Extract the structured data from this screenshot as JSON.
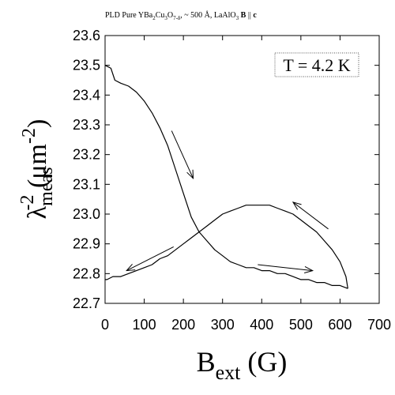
{
  "chart_data": {
    "type": "line",
    "title_parts": {
      "prefix": "PLD Pure YBa",
      "sub1": "2",
      "mid1": "Cu",
      "sub2": "3",
      "mid2": "O",
      "sub3": "7-δ",
      "mid3": ",  ~ 500 Å,  LaAlO",
      "sub4": "3",
      "mid4": "  ",
      "bold1": "B",
      "mid5": " || ",
      "bold2": "c"
    },
    "ylabel_parts": {
      "symbol": "λ",
      "sub": "meas",
      "sup": "-2",
      "unit_open": " (μm",
      "unit_sup": "-2",
      "unit_close": ")"
    },
    "xlabel_parts": {
      "main": "B",
      "sub": "ext",
      "unit": " (G)"
    },
    "annotation": "T = 4.2 K",
    "xlim": [
      0,
      700
    ],
    "ylim": [
      22.7,
      23.6
    ],
    "xticks": [
      0,
      100,
      200,
      300,
      400,
      500,
      600,
      700
    ],
    "yticks": [
      "22.7",
      "22.8",
      "22.9",
      "23.0",
      "23.1",
      "23.2",
      "23.3",
      "23.4",
      "23.5",
      "23.6"
    ],
    "series": [
      {
        "values": [
          [
            0,
            23.5
          ],
          [
            15,
            23.49
          ],
          [
            25,
            23.45
          ],
          [
            40,
            23.44
          ],
          [
            60,
            23.43
          ],
          [
            80,
            23.41
          ],
          [
            100,
            23.38
          ],
          [
            120,
            23.34
          ],
          [
            140,
            23.29
          ],
          [
            160,
            23.23
          ],
          [
            180,
            23.15
          ],
          [
            200,
            23.07
          ],
          [
            220,
            22.99
          ],
          [
            240,
            22.94
          ],
          [
            260,
            22.91
          ],
          [
            280,
            22.88
          ],
          [
            300,
            22.86
          ],
          [
            320,
            22.84
          ],
          [
            340,
            22.83
          ],
          [
            360,
            22.82
          ],
          [
            380,
            22.82
          ],
          [
            400,
            22.81
          ],
          [
            420,
            22.81
          ],
          [
            440,
            22.8
          ],
          [
            460,
            22.8
          ],
          [
            480,
            22.79
          ],
          [
            500,
            22.78
          ],
          [
            520,
            22.78
          ],
          [
            540,
            22.77
          ],
          [
            560,
            22.77
          ],
          [
            580,
            22.76
          ],
          [
            600,
            22.76
          ],
          [
            620,
            22.75
          ]
        ]
      },
      {
        "values": [
          [
            620,
            22.75
          ],
          [
            615,
            22.79
          ],
          [
            600,
            22.84
          ],
          [
            580,
            22.88
          ],
          [
            560,
            22.91
          ],
          [
            540,
            22.94
          ],
          [
            520,
            22.96
          ],
          [
            500,
            22.98
          ],
          [
            480,
            23.0
          ],
          [
            460,
            23.01
          ],
          [
            440,
            23.02
          ],
          [
            420,
            23.03
          ],
          [
            400,
            23.03
          ],
          [
            380,
            23.03
          ],
          [
            360,
            23.03
          ],
          [
            340,
            23.02
          ],
          [
            320,
            23.01
          ],
          [
            300,
            23.0
          ],
          [
            280,
            22.98
          ],
          [
            260,
            22.96
          ],
          [
            240,
            22.94
          ],
          [
            220,
            22.92
          ],
          [
            200,
            22.9
          ],
          [
            180,
            22.88
          ],
          [
            160,
            22.86
          ],
          [
            140,
            22.85
          ],
          [
            120,
            22.83
          ],
          [
            100,
            22.82
          ],
          [
            80,
            22.81
          ],
          [
            60,
            22.8
          ],
          [
            40,
            22.79
          ],
          [
            20,
            22.79
          ],
          [
            5,
            22.78
          ],
          [
            0,
            22.78
          ]
        ]
      }
    ],
    "arrows": [
      {
        "from": [
          170,
          23.28
        ],
        "to": [
          225,
          23.12
        ]
      },
      {
        "from": [
          390,
          22.83
        ],
        "to": [
          530,
          22.81
        ]
      },
      {
        "from": [
          570,
          22.95
        ],
        "to": [
          480,
          23.04
        ]
      },
      {
        "from": [
          175,
          22.89
        ],
        "to": [
          55,
          22.81
        ]
      }
    ],
    "grid": false
  }
}
